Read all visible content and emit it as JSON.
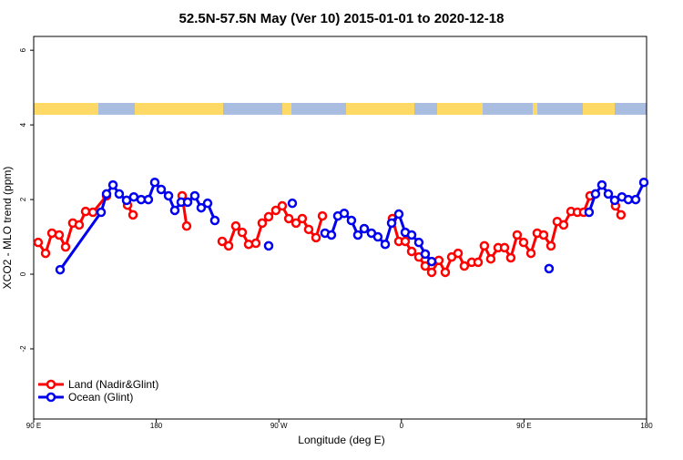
{
  "chart_data": {
    "type": "line",
    "title": "52.5N-57.5N May (Ver 10)   2015-01-01 to 2020-12-18",
    "xlabel": "Longitude (deg E)",
    "ylabel": "XCO2 - MLO trend (ppm)",
    "xlim": [
      90,
      540
    ],
    "ylim": [
      -3.88,
      6.37
    ],
    "xticks": [
      {
        "value": 90,
        "label": "90 E"
      },
      180,
      {
        "value": 270,
        "label": "90 W"
      },
      {
        "value": 360,
        "label": "0"
      },
      {
        "value": 450,
        "label": "90 E"
      },
      {
        "value": 540,
        "label": "180"
      }
    ],
    "yticks": [
      -2,
      0,
      2,
      4,
      6
    ],
    "legend": "bottom-left",
    "series": [
      {
        "name": "Land (Nadir&Glint)",
        "color": "#ff0000",
        "x": [
          93.3,
          98.7,
          103.4,
          108.7,
          113.4,
          118.7,
          123.4,
          128.1,
          133.5,
          143.5,
          null,
          158.9,
          162.9,
          null,
          199.0,
          202.3,
          null,
          228.4,
          233.1,
          238.4,
          243.1,
          247.8,
          253.1,
          257.8,
          262.5,
          267.8,
          272.5,
          277.3,
          282.6,
          287.2,
          291.9,
          297.3,
          302.0,
          null,
          353.4,
          358.1,
          362.8,
          367.5,
          372.8,
          377.5,
          382.2,
          387.5,
          392.2,
          396.9,
          401.6,
          406.2,
          411.6,
          416.3,
          420.9,
          425.6,
          431.0,
          435.7,
          440.3,
          445.0,
          449.7,
          455.1,
          459.7,
          464.4,
          469.8,
          474.4,
          479.1,
          484.5,
          489.2,
          493.8,
          498.5,
          null,
          517.2,
          521.2
        ],
        "values": [
          0.85,
          0.56,
          1.1,
          1.05,
          0.73,
          1.37,
          1.32,
          1.68,
          1.66,
          2.1,
          null,
          1.85,
          1.59,
          null,
          2.1,
          1.29,
          null,
          0.88,
          0.76,
          1.29,
          1.12,
          0.8,
          0.83,
          1.37,
          1.54,
          1.71,
          1.83,
          1.49,
          1.37,
          1.49,
          1.2,
          0.98,
          1.56,
          null,
          1.49,
          0.88,
          0.88,
          0.61,
          0.46,
          0.22,
          0.05,
          0.37,
          0.05,
          0.46,
          0.56,
          0.22,
          0.32,
          0.32,
          0.76,
          0.41,
          0.71,
          0.71,
          0.44,
          1.05,
          0.85,
          0.56,
          1.1,
          1.05,
          0.76,
          1.41,
          1.32,
          1.68,
          1.66,
          1.66,
          2.1,
          null,
          1.83,
          1.59
        ]
      },
      {
        "name": "Ocean (Glint)",
        "color": "#0000ee",
        "x": [
          109.4,
          139.5,
          143.5,
          148.2,
          152.8,
          158.2,
          163.5,
          168.9,
          174.2,
          178.9,
          183.6,
          189.0,
          193.6,
          198.3,
          203.0,
          208.3,
          213.0,
          217.7,
          223.0,
          null,
          262.5,
          null,
          279.9,
          null,
          303.9,
          308.6,
          313.3,
          318.0,
          323.3,
          328.0,
          332.7,
          338.0,
          342.7,
          348.1,
          352.8,
          358.1,
          362.8,
          367.5,
          372.8,
          377.5,
          382.2,
          null,
          468.4,
          null,
          497.8,
          502.5,
          507.2,
          511.9,
          516.6,
          521.9,
          526.6,
          532.0,
          538.0
        ],
        "values": [
          0.12,
          1.66,
          2.15,
          2.39,
          2.15,
          1.98,
          2.07,
          2.0,
          2.0,
          2.46,
          2.27,
          2.1,
          1.71,
          1.93,
          1.93,
          2.1,
          1.78,
          1.9,
          1.44,
          null,
          0.76,
          null,
          1.9,
          null,
          1.1,
          1.05,
          1.56,
          1.63,
          1.44,
          1.05,
          1.22,
          1.1,
          1.0,
          0.8,
          1.37,
          1.61,
          1.12,
          1.05,
          0.85,
          0.54,
          0.34,
          null,
          0.15,
          null,
          1.66,
          2.15,
          2.39,
          2.15,
          1.98,
          2.07,
          2.0,
          2.0,
          2.46
        ]
      }
    ]
  }
}
